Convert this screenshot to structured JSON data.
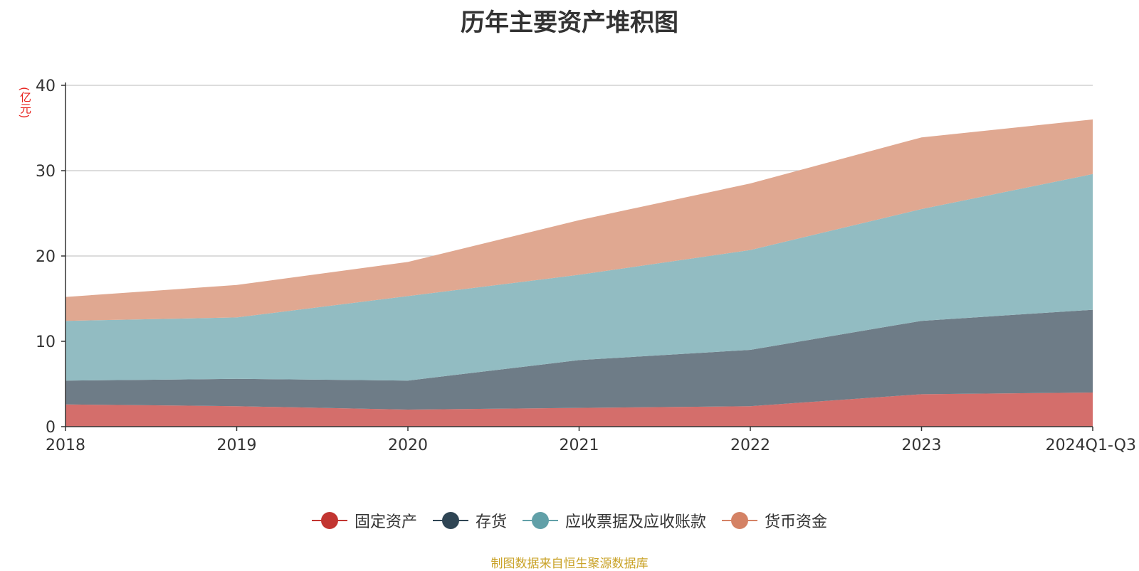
{
  "chart_data": {
    "type": "area",
    "stacked": true,
    "title": "历年主要资产堆积图",
    "ylabel": "(亿元)",
    "ylim": [
      0,
      40
    ],
    "yticks": [
      0,
      10,
      20,
      30,
      40
    ],
    "grid": true,
    "legend_position": "bottom",
    "categories": [
      "2018",
      "2019",
      "2020",
      "2021",
      "2022",
      "2023",
      "2024Q1-Q3"
    ],
    "series": [
      {
        "name": "固定资产",
        "color": "#c23531",
        "fill": "#d46e6b",
        "values": [
          2.6,
          2.4,
          2.0,
          2.2,
          2.4,
          3.8,
          4.0
        ]
      },
      {
        "name": "存货",
        "color": "#2f4554",
        "fill": "#6e7c87",
        "values": [
          2.8,
          3.2,
          3.4,
          5.6,
          6.6,
          8.6,
          9.7
        ]
      },
      {
        "name": "应收票据及应收账款",
        "color": "#61a0a8",
        "fill": "#92bcc2",
        "values": [
          7.0,
          7.2,
          9.9,
          10.0,
          11.7,
          13.1,
          15.9
        ]
      },
      {
        "name": "货币资金",
        "color": "#d48265",
        "fill": "#e0a891",
        "values": [
          2.8,
          3.8,
          4.0,
          6.4,
          7.8,
          8.4,
          6.4
        ]
      }
    ]
  },
  "legend": {
    "items": [
      {
        "label": "固定资产",
        "color": "#c23531"
      },
      {
        "label": "存货",
        "color": "#2f4554"
      },
      {
        "label": "应收票据及应收账款",
        "color": "#61a0a8"
      },
      {
        "label": "货币资金",
        "color": "#d48265"
      }
    ]
  },
  "source_note": "制图数据来自恒生聚源数据库"
}
